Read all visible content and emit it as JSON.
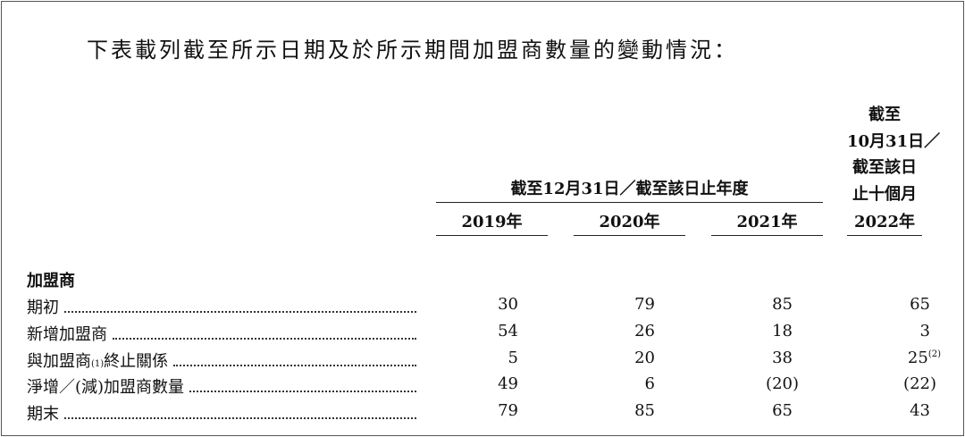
{
  "intro": "下表載列截至所示日期及於所示期間加盟商數量的變動情況：",
  "table": {
    "group_header": "截至12月31日／截至該日止年度",
    "last_header": [
      "截至",
      "10月31日／",
      "截至該日",
      "止十個月"
    ],
    "years": [
      "2019年",
      "2020年",
      "2021年",
      "2022年"
    ],
    "section": "加盟商",
    "rows": [
      {
        "label": "期初",
        "values": [
          "30",
          "79",
          "85",
          "65"
        ]
      },
      {
        "label": "新增加盟商",
        "values": [
          "54",
          "26",
          "18",
          "3"
        ]
      },
      {
        "label": "與加盟商",
        "label_note": "(1)",
        "label_end": "終止關係",
        "values": [
          "5",
          "20",
          "38",
          "25"
        ],
        "last_value_note": "(2)"
      },
      {
        "label": "淨增／(減)加盟商數量",
        "values": [
          "49",
          "6",
          "(20)",
          "(22)"
        ]
      },
      {
        "label": "期末",
        "values": [
          "79",
          "85",
          "65",
          "43"
        ]
      }
    ]
  }
}
